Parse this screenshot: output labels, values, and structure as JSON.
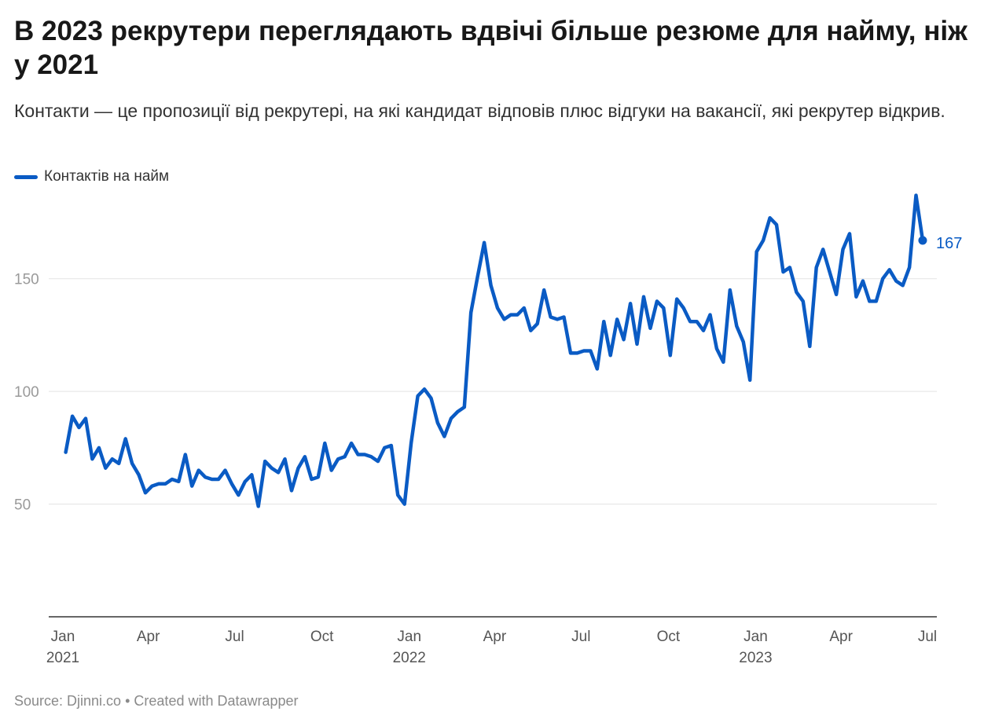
{
  "header": {
    "title": "В 2023 рекрутери переглядають вдвічі більше резюме для найму, ніж у 2021",
    "subtitle": "Контакти — це пропозиції від рекрутері, на які кандидат відповів плюс відгуки на вакансії, які рекрутер відкрив."
  },
  "footer": {
    "source": "Source: Djinni.co",
    "separator": "•",
    "credit": "Created with Datawrapper"
  },
  "chart_data": {
    "type": "line",
    "title": "В 2023 рекрутери переглядають вдвічі більше резюме для найму, ніж у 2021",
    "xlabel": "",
    "ylabel": "",
    "ylim": [
      0,
      190
    ],
    "yticks": [
      50,
      100,
      150
    ],
    "grid": true,
    "legend_position": "top-left",
    "xticks": [
      {
        "date": "2021-01-01",
        "label": "Jan",
        "year": "2021"
      },
      {
        "date": "2021-04-01",
        "label": "Apr",
        "year": ""
      },
      {
        "date": "2021-07-01",
        "label": "Jul",
        "year": ""
      },
      {
        "date": "2021-10-01",
        "label": "Oct",
        "year": ""
      },
      {
        "date": "2022-01-01",
        "label": "Jan",
        "year": "2022"
      },
      {
        "date": "2022-04-01",
        "label": "Apr",
        "year": ""
      },
      {
        "date": "2022-07-01",
        "label": "Jul",
        "year": ""
      },
      {
        "date": "2022-10-01",
        "label": "Oct",
        "year": ""
      },
      {
        "date": "2023-01-01",
        "label": "Jan",
        "year": "2023"
      },
      {
        "date": "2023-04-01",
        "label": "Apr",
        "year": ""
      },
      {
        "date": "2023-07-01",
        "label": "Jul",
        "year": ""
      }
    ],
    "series": [
      {
        "name": "Контактів на найм",
        "color": "#0a5bc4",
        "end_label": "167",
        "x": [
          "2021-01-04",
          "2021-01-11",
          "2021-01-18",
          "2021-01-25",
          "2021-02-01",
          "2021-02-08",
          "2021-02-15",
          "2021-02-22",
          "2021-03-01",
          "2021-03-08",
          "2021-03-15",
          "2021-03-22",
          "2021-03-29",
          "2021-04-05",
          "2021-04-12",
          "2021-04-19",
          "2021-04-26",
          "2021-05-03",
          "2021-05-10",
          "2021-05-17",
          "2021-05-24",
          "2021-05-31",
          "2021-06-07",
          "2021-06-14",
          "2021-06-21",
          "2021-06-28",
          "2021-07-05",
          "2021-07-12",
          "2021-07-19",
          "2021-07-26",
          "2021-08-02",
          "2021-08-09",
          "2021-08-16",
          "2021-08-23",
          "2021-08-30",
          "2021-09-06",
          "2021-09-13",
          "2021-09-20",
          "2021-09-27",
          "2021-10-04",
          "2021-10-11",
          "2021-10-18",
          "2021-10-25",
          "2021-11-01",
          "2021-11-08",
          "2021-11-15",
          "2021-11-22",
          "2021-11-29",
          "2021-12-06",
          "2021-12-13",
          "2021-12-20",
          "2021-12-27",
          "2022-01-03",
          "2022-01-10",
          "2022-01-17",
          "2022-01-24",
          "2022-01-31",
          "2022-02-07",
          "2022-02-14",
          "2022-02-21",
          "2022-02-28",
          "2022-03-07",
          "2022-03-14",
          "2022-03-21",
          "2022-03-28",
          "2022-04-04",
          "2022-04-11",
          "2022-04-18",
          "2022-04-25",
          "2022-05-02",
          "2022-05-09",
          "2022-05-16",
          "2022-05-23",
          "2022-05-30",
          "2022-06-06",
          "2022-06-13",
          "2022-06-20",
          "2022-06-27",
          "2022-07-04",
          "2022-07-11",
          "2022-07-18",
          "2022-07-25",
          "2022-08-01",
          "2022-08-08",
          "2022-08-15",
          "2022-08-22",
          "2022-08-29",
          "2022-09-05",
          "2022-09-12",
          "2022-09-19",
          "2022-09-26",
          "2022-10-03",
          "2022-10-10",
          "2022-10-17",
          "2022-10-24",
          "2022-10-31",
          "2022-11-07",
          "2022-11-14",
          "2022-11-21",
          "2022-11-28",
          "2022-12-05",
          "2022-12-12",
          "2022-12-19",
          "2022-12-26",
          "2023-01-02",
          "2023-01-09",
          "2023-01-16",
          "2023-01-23",
          "2023-01-30",
          "2023-02-06",
          "2023-02-13",
          "2023-02-20",
          "2023-02-27",
          "2023-03-06",
          "2023-03-13",
          "2023-03-20",
          "2023-03-27",
          "2023-04-03",
          "2023-04-10",
          "2023-04-17",
          "2023-04-24",
          "2023-05-01",
          "2023-05-08",
          "2023-05-15",
          "2023-05-22",
          "2023-05-29",
          "2023-06-05",
          "2023-06-12",
          "2023-06-19",
          "2023-06-26"
        ],
        "y": [
          73,
          89,
          84,
          88,
          70,
          75,
          66,
          70,
          68,
          79,
          68,
          63,
          55,
          58,
          59,
          59,
          61,
          60,
          72,
          58,
          65,
          62,
          61,
          61,
          65,
          59,
          54,
          60,
          63,
          49,
          69,
          66,
          64,
          70,
          56,
          66,
          71,
          61,
          62,
          77,
          65,
          70,
          71,
          77,
          72,
          72,
          71,
          69,
          75,
          76,
          54,
          50,
          77,
          98,
          101,
          97,
          86,
          80,
          88,
          91,
          93,
          135,
          151,
          166,
          147,
          137,
          132,
          134,
          134,
          137,
          127,
          130,
          145,
          133,
          132,
          133,
          117,
          117,
          118,
          118,
          110,
          131,
          116,
          132,
          123,
          139,
          121,
          142,
          128,
          140,
          137,
          116,
          141,
          137,
          131,
          131,
          127,
          134,
          119,
          113,
          145,
          129,
          122,
          105,
          162,
          167,
          177,
          174,
          153,
          155,
          144,
          140,
          120,
          155,
          163,
          153,
          143,
          163,
          170,
          142,
          149,
          140,
          140,
          150,
          154,
          149,
          147,
          155,
          187,
          167
        ]
      }
    ]
  }
}
